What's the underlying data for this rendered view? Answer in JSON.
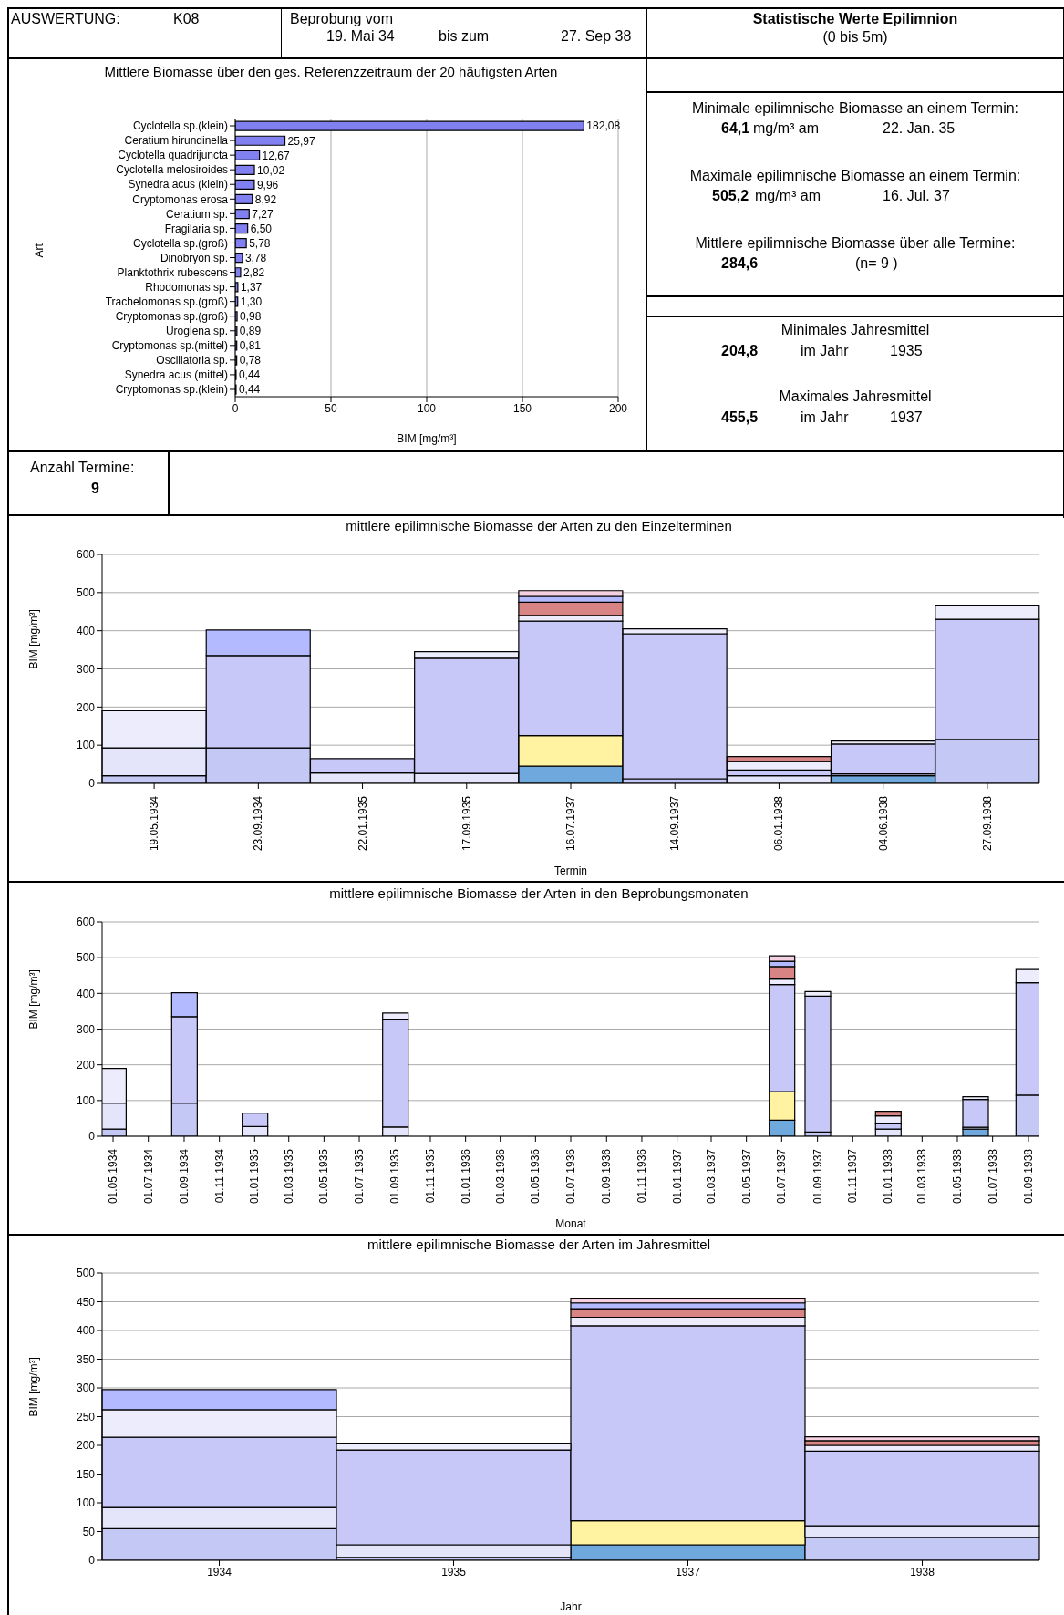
{
  "chart_data": [
    {
      "type": "other",
      "title": "Statistische Werte Epilimnion",
      "subtitle": "(0 bis 5m)",
      "annotations": [
        "AUSWERTUNG:",
        "K08",
        "Beprobung vom",
        "19. Mai 34",
        "bis zum",
        "27. Sep 38",
        "Minimale epilimnische Biomasse an einem Termin:",
        "64,1",
        "mg/m³ am",
        "22. Jan. 35",
        "Maximale epilimnische Biomasse an einem Termin:",
        "505,2",
        "mg/m³ am",
        "16. Jul. 37",
        "Mittlere epilimnische Biomasse über alle Termine:",
        "284,6",
        "(n=   9 )",
        "Minimales Jahresmittel",
        "204,8",
        "im Jahr",
        "1935",
        "Maximales Jahresmittel",
        "455,5",
        "im Jahr",
        "1937",
        "Anzahl Termine:",
        "9"
      ]
    },
    {
      "type": "bar",
      "orientation": "horizontal",
      "title": "Mittlere Biomasse über den ges. Referenzzeitraum der 20 häufigsten Arten",
      "xlabel": "BIM [mg/m³]",
      "ylabel": "Art",
      "categories": [
        "Cyclotella sp.(klein)",
        "Ceratium hirundinella",
        "Cyclotella quadrijuncta",
        "Cyclotella melosiroides",
        "Synedra acus (klein)",
        "Cryptomonas erosa",
        "Ceratium sp.",
        "Fragilaria sp.",
        "Cyclotella sp.(groß)",
        "Dinobryon sp.",
        "Planktothrix rubescens",
        "Rhodomonas sp.",
        "Trachelomonas sp.(groß)",
        "Cryptomonas sp.(groß)",
        "Uroglena sp.",
        "Cryptomonas sp.(mittel)",
        "Oscillatoria sp.",
        "Synedra acus (mittel)",
        "Cryptomonas sp.(klein)"
      ],
      "values": [
        182.08,
        25.97,
        12.67,
        10.02,
        9.96,
        8.92,
        7.27,
        6.5,
        5.78,
        3.78,
        2.82,
        1.37,
        1.3,
        0.98,
        0.89,
        0.81,
        0.78,
        0.44,
        0.44
      ],
      "value_labels": [
        "182,08",
        "25,97",
        "12,67",
        "10,02",
        "9,96",
        "8,92",
        "7,27",
        "6,50",
        "5,78",
        "3,78",
        "2,82",
        "1,37",
        "1,30",
        "0,98",
        "0,89",
        "0,81",
        "0,78",
        "0,44",
        "0,44"
      ],
      "color": "#8080f0",
      "xlim": [
        0,
        200
      ],
      "xticks": [
        0,
        50,
        100,
        150,
        200
      ],
      "grid": "x"
    },
    {
      "type": "bar",
      "stacked": true,
      "title": "mittlere epilimnische Biomasse der Arten zu den Einzelterminen",
      "xlabel": "Termin",
      "ylabel": "BIM [mg/m³]",
      "categories": [
        "19.05.1934",
        "23.09.1934",
        "22.01.1935",
        "17.09.1935",
        "16.07.1937",
        "14.09.1937",
        "06.01.1938",
        "04.06.1938",
        "27.09.1938"
      ],
      "ylim": [
        0,
        600
      ],
      "yticks": [
        0,
        100,
        200,
        300,
        400,
        500,
        600
      ],
      "grid": "y",
      "series": [
        {
          "color": "#6fa8dc",
          "values": [
            null,
            null,
            null,
            null,
            45,
            null,
            null,
            20,
            null
          ]
        },
        {
          "color": "#c4c8f4",
          "values": [
            20,
            93,
            null,
            null,
            null,
            12,
            null,
            null,
            115
          ]
        },
        {
          "color": "#fff2a0",
          "values": [
            null,
            null,
            null,
            null,
            80,
            null,
            null,
            null,
            null
          ]
        },
        {
          "color": "#e4e4fa",
          "values": [
            73,
            null,
            27,
            26,
            null,
            null,
            20,
            5,
            null
          ]
        },
        {
          "color": "#c8c8f8",
          "values": [
            null,
            242,
            38,
            302,
            300,
            380,
            15,
            78,
            315
          ]
        },
        {
          "color": "#ececfc",
          "values": [
            97,
            null,
            null,
            17,
            15,
            13,
            22,
            8,
            37
          ]
        },
        {
          "color": "#d88484",
          "values": [
            null,
            null,
            null,
            null,
            35,
            null,
            13,
            null,
            null
          ]
        },
        {
          "color": "#b4baff",
          "values": [
            null,
            67,
            null,
            null,
            15,
            null,
            null,
            null,
            null
          ]
        },
        {
          "color": "#f4d0e0",
          "values": [
            null,
            null,
            null,
            null,
            15,
            null,
            null,
            null,
            null
          ]
        }
      ]
    },
    {
      "type": "bar",
      "stacked": true,
      "title": "mittlere epilimnische Biomasse der Arten in den Beprobungsmonaten",
      "xlabel": "Monat",
      "ylabel": "BIM [mg/m³]",
      "x": [
        "1934-05",
        "1934-09",
        "1935-01",
        "1935-09",
        "1937-07",
        "1937-09",
        "1938-01",
        "1938-06",
        "1938-09"
      ],
      "xlim": [
        "1934-04-12",
        "1938-09-20"
      ],
      "xticks": [
        {
          "value": "1934-05-01",
          "label": "01.05.1934"
        },
        {
          "value": "1934-07-01",
          "label": "01.07.1934"
        },
        {
          "value": "1934-09-01",
          "label": "01.09.1934"
        },
        {
          "value": "1934-11-01",
          "label": "01.11.1934"
        },
        {
          "value": "1935-01-01",
          "label": "01.01.1935"
        },
        {
          "value": "1935-03-01",
          "label": "01.03.1935"
        },
        {
          "value": "1935-05-01",
          "label": "01.05.1935"
        },
        {
          "value": "1935-07-01",
          "label": "01.07.1935"
        },
        {
          "value": "1935-09-01",
          "label": "01.09.1935"
        },
        {
          "value": "1935-11-01",
          "label": "01.11.1935"
        },
        {
          "value": "1936-01-01",
          "label": "01.01.1936"
        },
        {
          "value": "1936-03-01",
          "label": "01.03.1936"
        },
        {
          "value": "1936-05-01",
          "label": "01.05.1936"
        },
        {
          "value": "1936-07-01",
          "label": "01.07.1936"
        },
        {
          "value": "1936-09-01",
          "label": "01.09.1936"
        },
        {
          "value": "1936-11-01",
          "label": "01.11.1936"
        },
        {
          "value": "1937-01-01",
          "label": "01.01.1937"
        },
        {
          "value": "1937-03-01",
          "label": "01.03.1937"
        },
        {
          "value": "1937-05-01",
          "label": "01.05.1937"
        },
        {
          "value": "1937-07-01",
          "label": "01.07.1937"
        },
        {
          "value": "1937-09-01",
          "label": "01.09.1937"
        },
        {
          "value": "1937-11-01",
          "label": "01.11.1937"
        },
        {
          "value": "1938-01-01",
          "label": "01.01.1938"
        },
        {
          "value": "1938-03-01",
          "label": "01.03.1938"
        },
        {
          "value": "1938-05-01",
          "label": "01.05.1938"
        },
        {
          "value": "1938-07-01",
          "label": "01.07.1938"
        },
        {
          "value": "1938-09-01",
          "label": "01.09.1938"
        }
      ],
      "ylim": [
        0,
        600
      ],
      "yticks": [
        0,
        100,
        200,
        300,
        400,
        500,
        600
      ],
      "grid": "y",
      "series": [
        {
          "color": "#6fa8dc",
          "values": [
            null,
            null,
            null,
            null,
            45,
            null,
            null,
            20,
            null
          ]
        },
        {
          "color": "#c4c8f4",
          "values": [
            20,
            93,
            null,
            null,
            null,
            12,
            null,
            null,
            115
          ]
        },
        {
          "color": "#fff2a0",
          "values": [
            null,
            null,
            null,
            null,
            80,
            null,
            null,
            null,
            null
          ]
        },
        {
          "color": "#e4e4fa",
          "values": [
            73,
            null,
            27,
            26,
            null,
            null,
            20,
            5,
            null
          ]
        },
        {
          "color": "#c8c8f8",
          "values": [
            null,
            242,
            38,
            302,
            300,
            380,
            15,
            78,
            315
          ]
        },
        {
          "color": "#ececfc",
          "values": [
            97,
            null,
            null,
            17,
            15,
            13,
            22,
            8,
            37
          ]
        },
        {
          "color": "#d88484",
          "values": [
            null,
            null,
            null,
            null,
            35,
            null,
            13,
            null,
            null
          ]
        },
        {
          "color": "#b4baff",
          "values": [
            null,
            67,
            null,
            null,
            15,
            null,
            null,
            null,
            null
          ]
        },
        {
          "color": "#f4d0e0",
          "values": [
            null,
            null,
            null,
            null,
            15,
            null,
            null,
            null,
            null
          ]
        }
      ]
    },
    {
      "type": "bar",
      "stacked": true,
      "title": "mittlere epilimnische Biomasse der Arten im Jahresmittel",
      "xlabel": "Jahr",
      "ylabel": "BIM [mg/m³]",
      "categories": [
        "1934",
        "1935",
        "1937",
        "1938"
      ],
      "ylim": [
        0,
        500
      ],
      "yticks": [
        0,
        50,
        100,
        150,
        200,
        250,
        300,
        350,
        400,
        450,
        500
      ],
      "grid": "y",
      "series": [
        {
          "color": "#6fa8dc",
          "values": [
            null,
            null,
            27,
            null
          ]
        },
        {
          "color": "#c4c8f4",
          "values": [
            55,
            5,
            null,
            40
          ]
        },
        {
          "color": "#fff2a0",
          "values": [
            null,
            null,
            42,
            null
          ]
        },
        {
          "color": "#e4e4fa",
          "values": [
            37,
            22,
            null,
            20
          ]
        },
        {
          "color": "#c8c8f8",
          "values": [
            122,
            165,
            339,
            130
          ]
        },
        {
          "color": "#ececfc",
          "values": [
            48,
            12,
            15,
            10
          ]
        },
        {
          "color": "#d88484",
          "values": [
            null,
            null,
            15,
            8
          ]
        },
        {
          "color": "#b4baff",
          "values": [
            35,
            null,
            10,
            null
          ]
        },
        {
          "color": "#f4d0e0",
          "values": [
            null,
            null,
            8,
            7
          ]
        }
      ]
    }
  ]
}
